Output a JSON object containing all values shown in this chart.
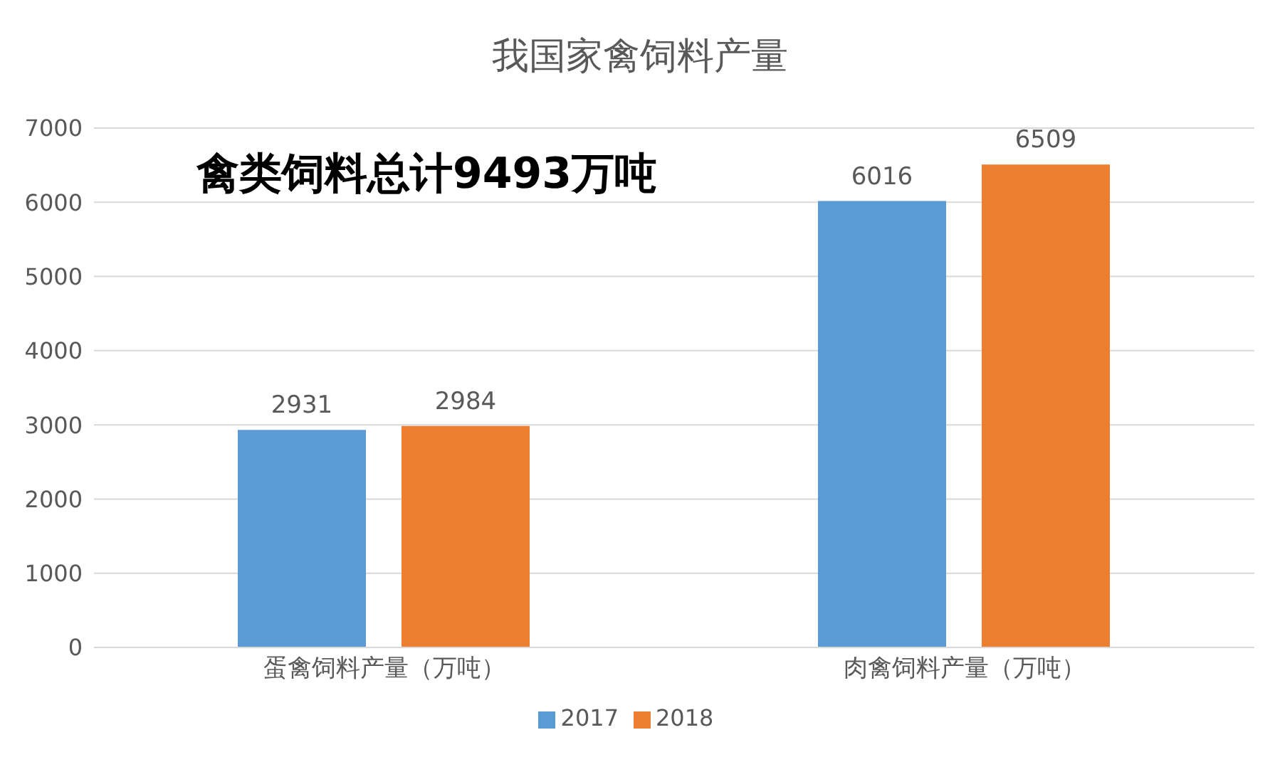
{
  "chart_data": {
    "type": "bar",
    "title": "我国家禽饲料产量",
    "categories": [
      "蛋禽饲料产量（万吨）",
      "肉禽饲料产量（万吨）"
    ],
    "series": [
      {
        "name": "2017",
        "color": "#5b9bd5",
        "values": [
          2931,
          6016
        ]
      },
      {
        "name": "2018",
        "color": "#ed7d31",
        "values": [
          2984,
          6509
        ]
      }
    ],
    "ylim": [
      0,
      7000
    ],
    "yticks": [
      0,
      1000,
      2000,
      3000,
      4000,
      5000,
      6000,
      7000
    ],
    "grid": "y",
    "legend": "bottom",
    "data_labels": true,
    "annotations": [
      "禽类饲料总计9493万吨"
    ]
  }
}
